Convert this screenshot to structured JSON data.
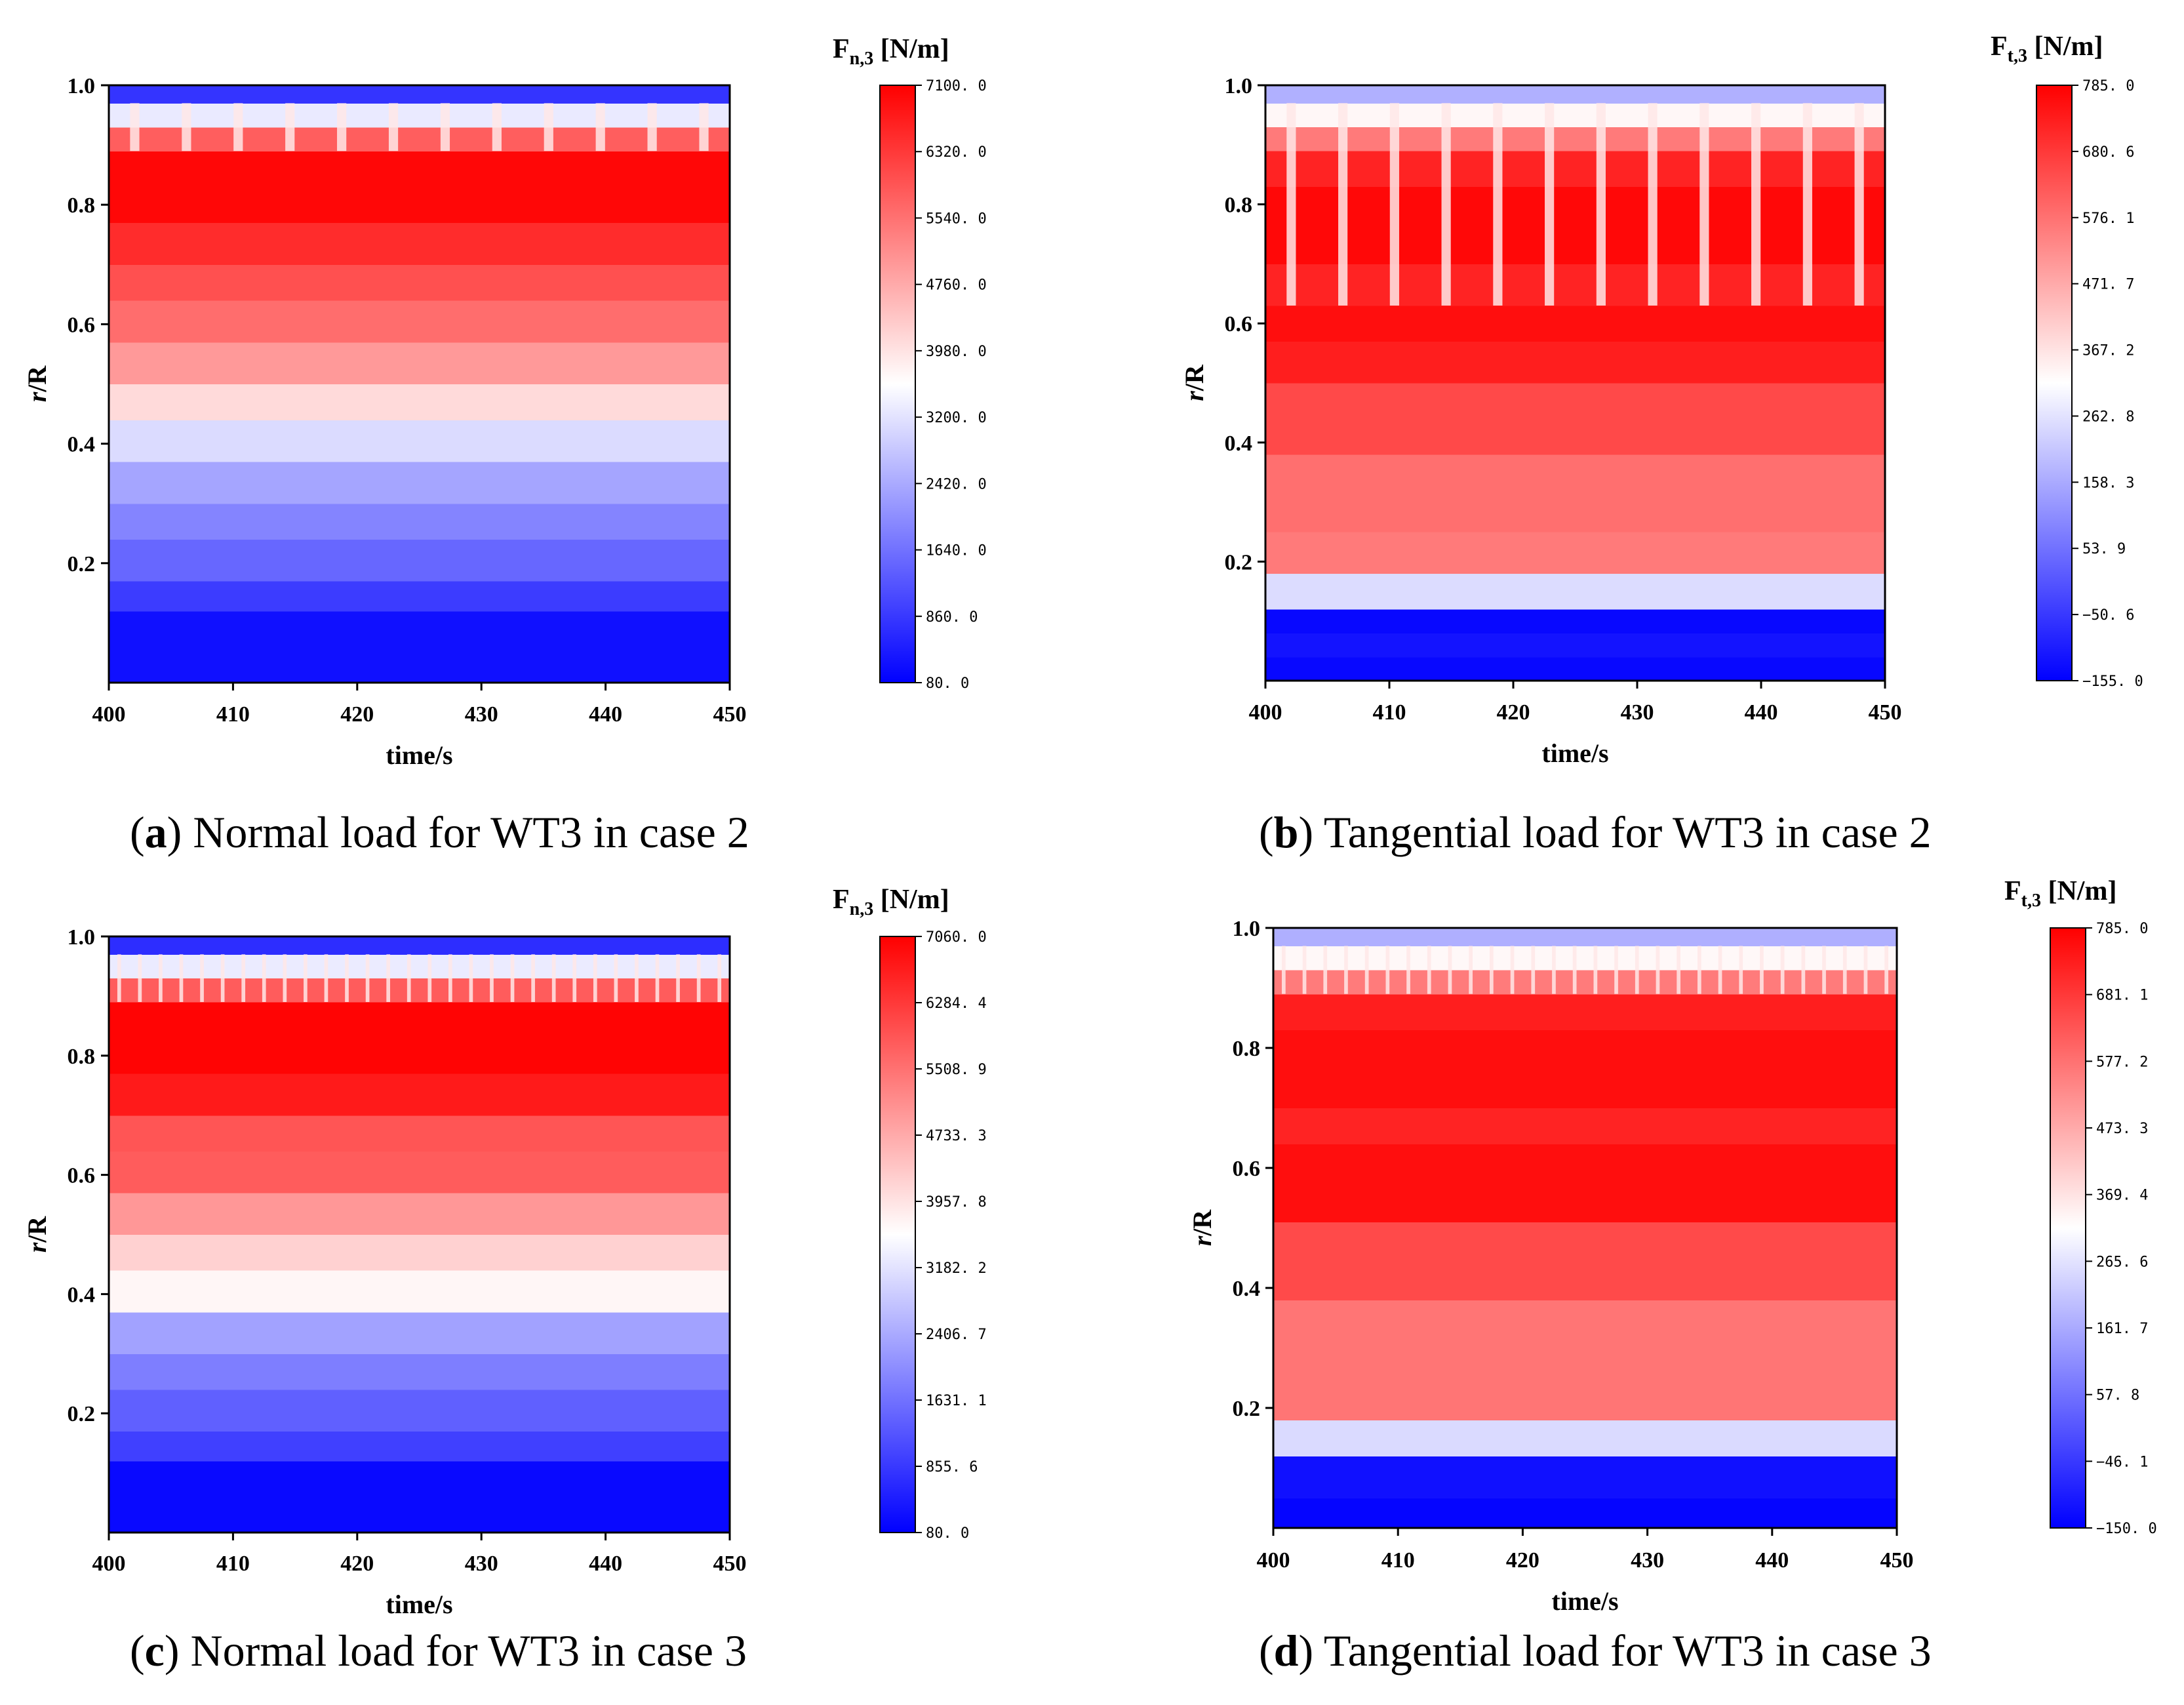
{
  "figure": {
    "charts": [
      {
        "id": "a",
        "letter": "a",
        "caption": "Normal load for WT3 in case 2",
        "colorbar_main": "F",
        "colorbar_sub": "n,3",
        "colorbar_unit": " [N/m]",
        "cbar_ticks": [
          "7100. 0",
          "6320. 0",
          "5540. 0",
          "4760. 0",
          "3980. 0",
          "3200. 0",
          "2420. 0",
          "1640. 0",
          "860. 0",
          "80. 0"
        ]
      },
      {
        "id": "b",
        "letter": "b",
        "caption": "Tangential load for WT3 in case 2",
        "colorbar_main": "F",
        "colorbar_sub": "t,3",
        "colorbar_unit": " [N/m]",
        "cbar_ticks": [
          "785. 0",
          "680. 6",
          "576. 1",
          "471. 7",
          "367. 2",
          "262. 8",
          "158. 3",
          "53. 9",
          "−50. 6",
          "−155. 0"
        ]
      },
      {
        "id": "c",
        "letter": "c",
        "caption": "Normal load for WT3 in case 3",
        "colorbar_main": "F",
        "colorbar_sub": "n,3",
        "colorbar_unit": " [N/m]",
        "cbar_ticks": [
          "7060. 0",
          "6284. 4",
          "5508. 9",
          "4733. 3",
          "3957. 8",
          "3182. 2",
          "2406. 7",
          "1631. 1",
          "855. 6",
          "80. 0"
        ]
      },
      {
        "id": "d",
        "letter": "d",
        "caption": "Tangential load for WT3 in case 3",
        "colorbar_main": "F",
        "colorbar_sub": "t,3",
        "colorbar_unit": " [N/m]",
        "cbar_ticks": [
          "785. 0",
          "681. 1",
          "577. 2",
          "473. 3",
          "369. 4",
          "265. 6",
          "161. 7",
          "57. 8",
          "−46. 1",
          "−150. 0"
        ]
      }
    ],
    "xlabel": "time/s",
    "ylabel_italic": "r",
    "ylabel_rest": "/R",
    "x_ticks": [
      "400",
      "410",
      "420",
      "430",
      "440",
      "450"
    ],
    "y_ticks": [
      "0.2",
      "0.4",
      "0.6",
      "0.8",
      "1.0"
    ],
    "colors": {
      "low": "#0000ff",
      "mid": "#ffffff",
      "high": "#ff0000",
      "axis": "#000000"
    }
  },
  "chart_data": [
    {
      "type": "heatmap",
      "title": "Normal load for WT3 in case 2",
      "xlabel": "time/s",
      "ylabel": "r/R",
      "xlim": [
        400,
        450
      ],
      "ylim": [
        0,
        1.0
      ],
      "x_ticks": [
        400,
        410,
        420,
        430,
        440,
        450
      ],
      "y_ticks": [
        0.2,
        0.4,
        0.6,
        0.8,
        1.0
      ],
      "colorbar_label": "Fn,3 [N/m]",
      "colorbar_range": [
        80.0,
        7100.0
      ],
      "colormap": "blue-white-red",
      "bands": [
        {
          "r_from": 0.0,
          "r_to": 0.12,
          "value": 300
        },
        {
          "r_from": 0.12,
          "r_to": 0.17,
          "value": 900
        },
        {
          "r_from": 0.17,
          "r_to": 0.24,
          "value": 1500
        },
        {
          "r_from": 0.24,
          "r_to": 0.3,
          "value": 1900
        },
        {
          "r_from": 0.3,
          "r_to": 0.37,
          "value": 2350
        },
        {
          "r_from": 0.37,
          "r_to": 0.44,
          "value": 3100
        },
        {
          "r_from": 0.44,
          "r_to": 0.5,
          "value": 4100
        },
        {
          "r_from": 0.5,
          "r_to": 0.57,
          "value": 5000
        },
        {
          "r_from": 0.57,
          "r_to": 0.64,
          "value": 5600
        },
        {
          "r_from": 0.64,
          "r_to": 0.7,
          "value": 6000
        },
        {
          "r_from": 0.7,
          "r_to": 0.77,
          "value": 6500
        },
        {
          "r_from": 0.77,
          "r_to": 0.89,
          "value": 7000
        },
        {
          "r_from": 0.89,
          "r_to": 0.93,
          "value": 5800
        },
        {
          "r_from": 0.93,
          "r_to": 0.97,
          "value": 3300
        },
        {
          "r_from": 0.97,
          "r_to": 1.0,
          "value": 800
        }
      ],
      "periodic_streaks": {
        "count": 12,
        "r_from": 0.89,
        "r_to": 0.97,
        "value": 3900
      }
    },
    {
      "type": "heatmap",
      "title": "Tangential load for WT3 in case 2",
      "xlabel": "time/s",
      "ylabel": "r/R",
      "xlim": [
        400,
        450
      ],
      "ylim": [
        0,
        1.0
      ],
      "x_ticks": [
        400,
        410,
        420,
        430,
        440,
        450
      ],
      "y_ticks": [
        0.2,
        0.4,
        0.6,
        0.8,
        1.0
      ],
      "colorbar_label": "Ft,3 [N/m]",
      "colorbar_range": [
        -155.0,
        785.0
      ],
      "colormap": "blue-white-red",
      "bands": [
        {
          "r_from": 0.0,
          "r_to": 0.04,
          "value": -140
        },
        {
          "r_from": 0.04,
          "r_to": 0.08,
          "value": -120
        },
        {
          "r_from": 0.08,
          "r_to": 0.12,
          "value": -140
        },
        {
          "r_from": 0.12,
          "r_to": 0.18,
          "value": 250
        },
        {
          "r_from": 0.18,
          "r_to": 0.25,
          "value": 560
        },
        {
          "r_from": 0.25,
          "r_to": 0.38,
          "value": 580
        },
        {
          "r_from": 0.38,
          "r_to": 0.5,
          "value": 650
        },
        {
          "r_from": 0.5,
          "r_to": 0.57,
          "value": 730
        },
        {
          "r_from": 0.57,
          "r_to": 0.63,
          "value": 760
        },
        {
          "r_from": 0.63,
          "r_to": 0.7,
          "value": 720
        },
        {
          "r_from": 0.7,
          "r_to": 0.83,
          "value": 770
        },
        {
          "r_from": 0.83,
          "r_to": 0.89,
          "value": 720
        },
        {
          "r_from": 0.89,
          "r_to": 0.93,
          "value": 560
        },
        {
          "r_from": 0.93,
          "r_to": 0.97,
          "value": 330
        },
        {
          "r_from": 0.97,
          "r_to": 1.0,
          "value": 170
        }
      ],
      "periodic_streaks": {
        "count": 12,
        "r_from": 0.63,
        "r_to": 0.97,
        "value": 360
      }
    },
    {
      "type": "heatmap",
      "title": "Normal load for WT3 in case 3",
      "xlabel": "time/s",
      "ylabel": "r/R",
      "xlim": [
        400,
        450
      ],
      "ylim": [
        0,
        1.0
      ],
      "x_ticks": [
        400,
        410,
        420,
        430,
        440,
        450
      ],
      "y_ticks": [
        0.2,
        0.4,
        0.6,
        0.8,
        1.0
      ],
      "colorbar_label": "Fn,3 [N/m]",
      "colorbar_range": [
        80.0,
        7060.0
      ],
      "colormap": "blue-white-red",
      "bands": [
        {
          "r_from": 0.0,
          "r_to": 0.12,
          "value": 200
        },
        {
          "r_from": 0.12,
          "r_to": 0.17,
          "value": 950
        },
        {
          "r_from": 0.17,
          "r_to": 0.24,
          "value": 1400
        },
        {
          "r_from": 0.24,
          "r_to": 0.3,
          "value": 1800
        },
        {
          "r_from": 0.3,
          "r_to": 0.37,
          "value": 2300
        },
        {
          "r_from": 0.37,
          "r_to": 0.44,
          "value": 3700
        },
        {
          "r_from": 0.44,
          "r_to": 0.5,
          "value": 4200
        },
        {
          "r_from": 0.5,
          "r_to": 0.57,
          "value": 5000
        },
        {
          "r_from": 0.57,
          "r_to": 0.64,
          "value": 5800
        },
        {
          "r_from": 0.64,
          "r_to": 0.7,
          "value": 5900
        },
        {
          "r_from": 0.7,
          "r_to": 0.77,
          "value": 6700
        },
        {
          "r_from": 0.77,
          "r_to": 0.89,
          "value": 7000
        },
        {
          "r_from": 0.89,
          "r_to": 0.93,
          "value": 5800
        },
        {
          "r_from": 0.93,
          "r_to": 0.97,
          "value": 3300
        },
        {
          "r_from": 0.97,
          "r_to": 1.0,
          "value": 700
        }
      ],
      "periodic_streaks": {
        "count": 30,
        "r_from": 0.89,
        "r_to": 0.97,
        "value": 3900
      }
    },
    {
      "type": "heatmap",
      "title": "Tangential load for WT3 in case 3",
      "xlabel": "time/s",
      "ylabel": "r/R",
      "xlim": [
        400,
        450
      ],
      "ylim": [
        0,
        1.0
      ],
      "x_ticks": [
        400,
        410,
        420,
        430,
        440,
        450
      ],
      "y_ticks": [
        0.2,
        0.4,
        0.6,
        0.8,
        1.0
      ],
      "colorbar_label": "Ft,3 [N/m]",
      "colorbar_range": [
        -150.0,
        785.0
      ],
      "colormap": "blue-white-red",
      "bands": [
        {
          "r_from": 0.0,
          "r_to": 0.05,
          "value": -140
        },
        {
          "r_from": 0.05,
          "r_to": 0.12,
          "value": -120
        },
        {
          "r_from": 0.12,
          "r_to": 0.18,
          "value": 250
        },
        {
          "r_from": 0.18,
          "r_to": 0.38,
          "value": 570
        },
        {
          "r_from": 0.38,
          "r_to": 0.51,
          "value": 650
        },
        {
          "r_from": 0.51,
          "r_to": 0.64,
          "value": 760
        },
        {
          "r_from": 0.64,
          "r_to": 0.7,
          "value": 720
        },
        {
          "r_from": 0.7,
          "r_to": 0.83,
          "value": 760
        },
        {
          "r_from": 0.83,
          "r_to": 0.89,
          "value": 730
        },
        {
          "r_from": 0.89,
          "r_to": 0.93,
          "value": 560
        },
        {
          "r_from": 0.93,
          "r_to": 0.97,
          "value": 330
        },
        {
          "r_from": 0.97,
          "r_to": 1.0,
          "value": 170
        }
      ],
      "periodic_streaks": {
        "count": 30,
        "r_from": 0.89,
        "r_to": 0.97,
        "value": 360
      }
    }
  ]
}
